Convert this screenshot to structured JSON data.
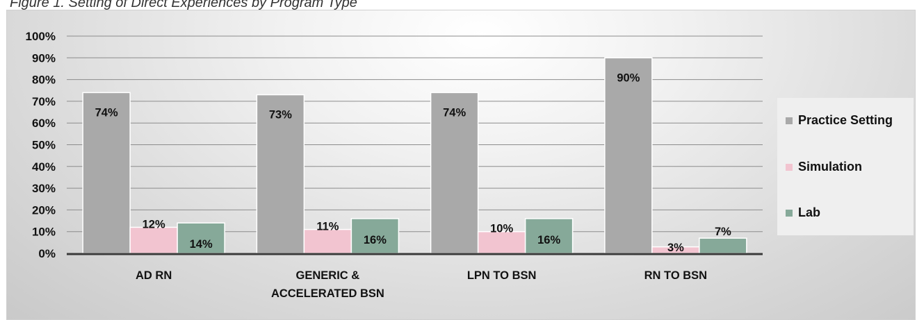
{
  "caption": "Figure 1. Setting of Direct Experiences by Program Type",
  "chart_data": {
    "type": "bar",
    "categories": [
      "AD RN",
      "GENERIC & ACCELERATED BSN",
      "LPN TO BSN",
      "RN TO BSN"
    ],
    "category_lines": [
      [
        "AD RN"
      ],
      [
        "GENERIC &",
        "ACCELERATED BSN"
      ],
      [
        "LPN TO BSN"
      ],
      [
        "RN TO BSN"
      ]
    ],
    "series": [
      {
        "name": "Practice Setting",
        "color": "#a9a9a9",
        "values": [
          74,
          73,
          74,
          90
        ],
        "labels": [
          "74%",
          "73%",
          "74%",
          "90%"
        ]
      },
      {
        "name": "Simulation",
        "color": "#f2c4d0",
        "values": [
          12,
          11,
          10,
          3
        ],
        "labels": [
          "12%",
          "11%",
          "10%",
          "3%"
        ]
      },
      {
        "name": "Lab",
        "color": "#86a999",
        "values": [
          14,
          16,
          16,
          7
        ],
        "labels": [
          "14%",
          "16%",
          "16%",
          "7%"
        ]
      }
    ],
    "ylim": [
      0,
      100
    ],
    "yticks": [
      "0%",
      "10%",
      "20%",
      "30%",
      "40%",
      "50%",
      "60%",
      "70%",
      "80%",
      "90%",
      "100%"
    ],
    "legend_position": "right",
    "grid": true
  }
}
